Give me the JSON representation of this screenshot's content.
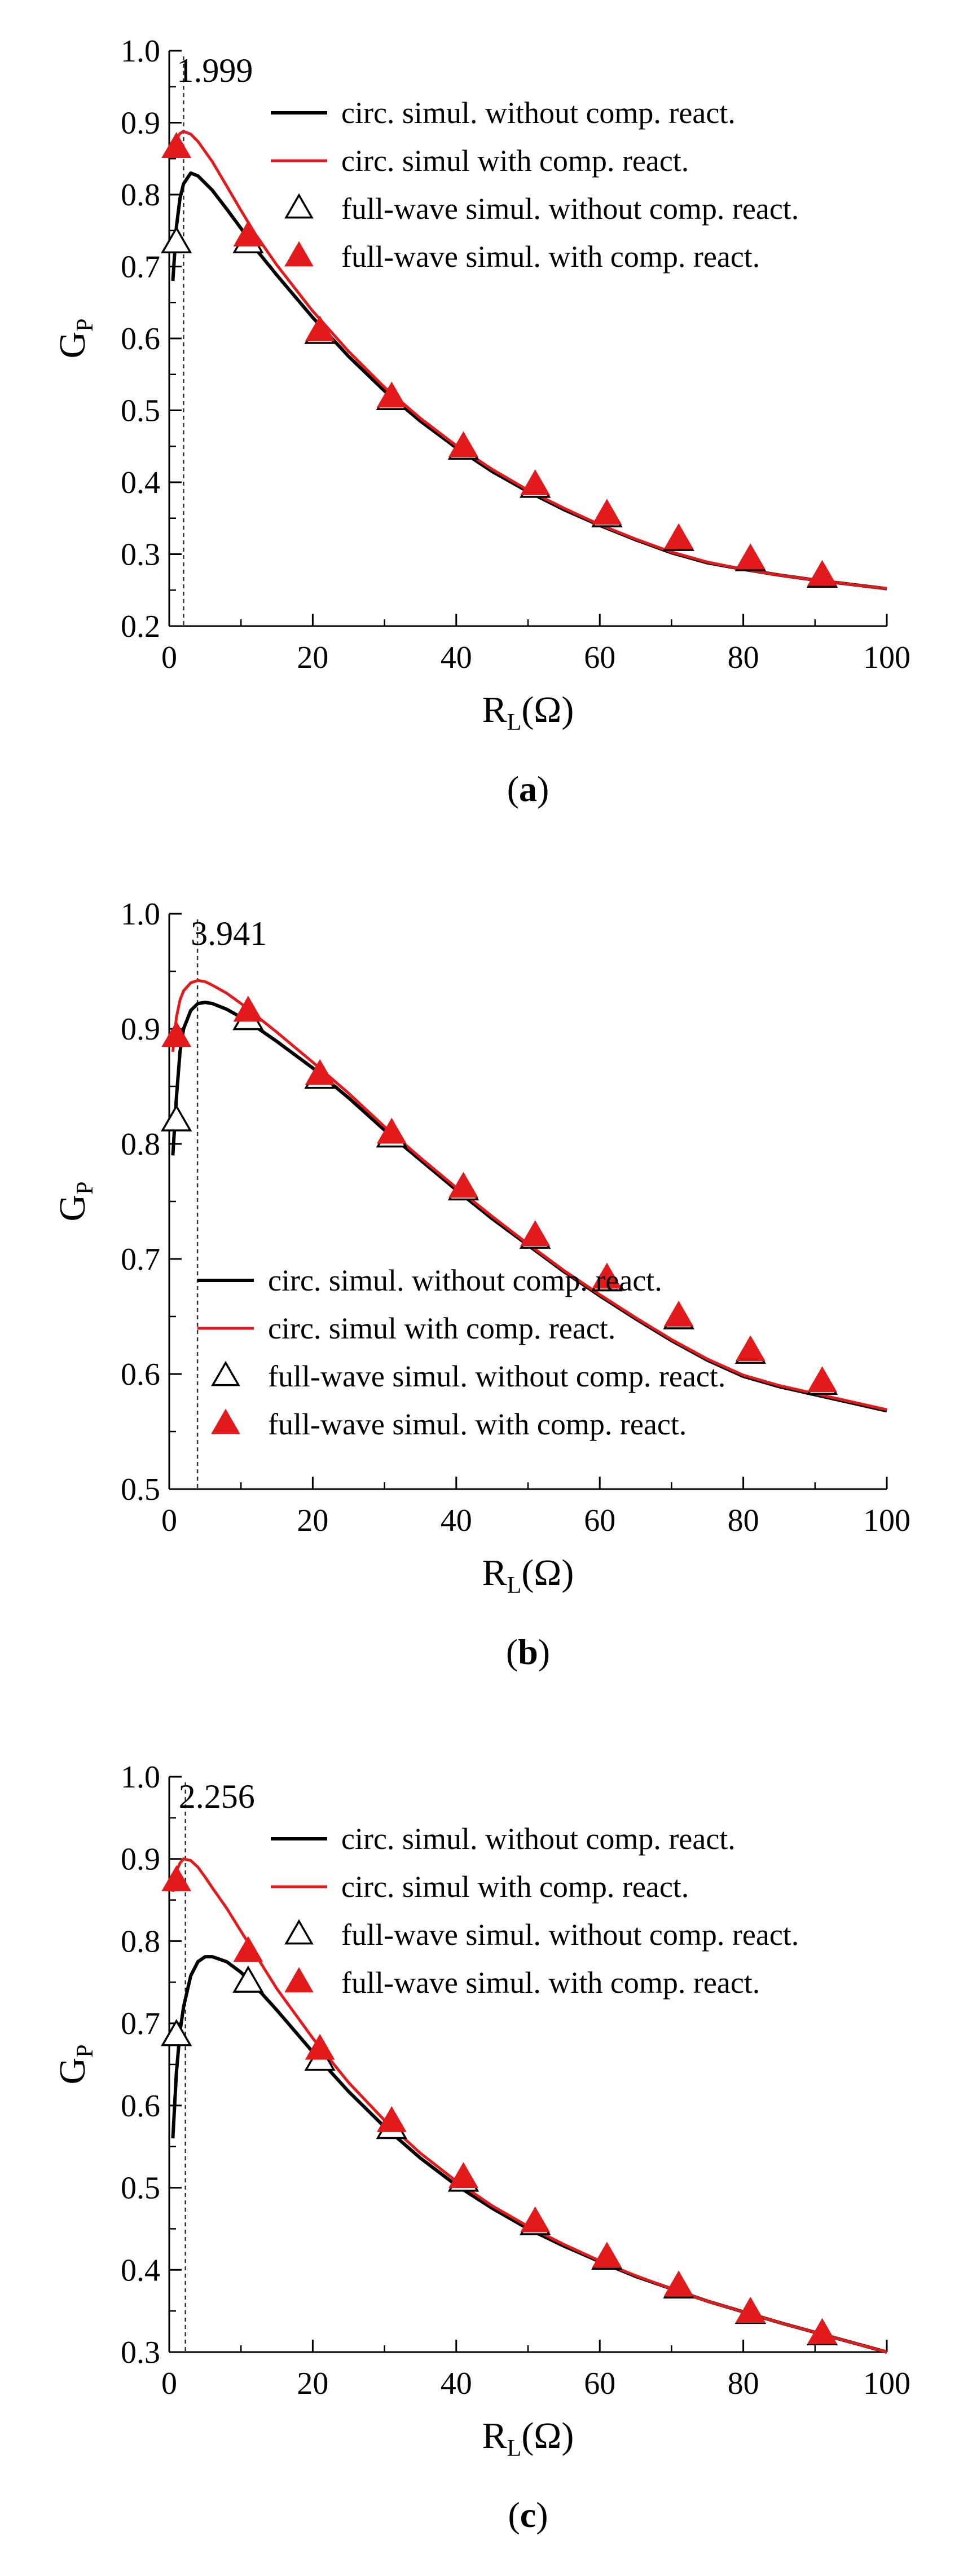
{
  "figure": {
    "panels": [
      {
        "caption_letter": "a",
        "chart_data": {
          "type": "line",
          "title": "",
          "xlabel": "R",
          "xlabel_sub": "L",
          "xlabel_suffix": "(Ω)",
          "ylabel": "G",
          "ylabel_sub": "P",
          "xlim": [
            0,
            100
          ],
          "ylim": [
            0.2,
            1.0
          ],
          "xticks": [
            0,
            20,
            40,
            60,
            80,
            100
          ],
          "yticks": [
            0.2,
            0.3,
            0.4,
            0.5,
            0.6,
            0.7,
            0.8,
            0.9,
            1.0
          ],
          "ytick_labels": [
            "0.2",
            "0.3",
            "0.4",
            "0.5",
            "0.6",
            "0.7",
            "0.8",
            "0.9",
            "1.0"
          ],
          "annotation": {
            "x": 1.999,
            "label": "1.999"
          },
          "legend_position": "top-right",
          "series": [
            {
              "name": "circ. simul. without comp. react.",
              "kind": "line",
              "color": "#000000",
              "x": [
                0.5,
                1,
                1.5,
                2,
                3,
                4,
                6,
                8,
                10,
                12,
                15,
                20,
                25,
                30,
                35,
                40,
                45,
                50,
                55,
                60,
                65,
                70,
                75,
                80,
                85,
                90,
                95,
                100
              ],
              "values": [
                0.68,
                0.755,
                0.795,
                0.815,
                0.83,
                0.826,
                0.806,
                0.78,
                0.753,
                0.725,
                0.688,
                0.629,
                0.575,
                0.527,
                0.485,
                0.448,
                0.415,
                0.387,
                0.362,
                0.34,
                0.32,
                0.302,
                0.288,
                0.279,
                0.271,
                0.264,
                0.258,
                0.252
              ]
            },
            {
              "name": "circ. simul with comp. react.",
              "kind": "line",
              "color": "#e31a1c",
              "x": [
                0.5,
                1,
                1.5,
                2,
                3,
                4,
                6,
                8,
                10,
                12,
                15,
                20,
                25,
                30,
                35,
                40,
                45,
                50,
                55,
                60,
                65,
                70,
                75,
                80,
                85,
                90,
                95,
                100
              ],
              "values": [
                0.855,
                0.877,
                0.885,
                0.888,
                0.884,
                0.874,
                0.846,
                0.812,
                0.778,
                0.745,
                0.702,
                0.638,
                0.582,
                0.532,
                0.489,
                0.451,
                0.418,
                0.389,
                0.364,
                0.341,
                0.321,
                0.303,
                0.289,
                0.279,
                0.271,
                0.264,
                0.258,
                0.252
              ]
            },
            {
              "name": "full-wave simul. without comp. react.",
              "kind": "markers-open",
              "color": "#000000",
              "x": [
                1,
                11,
                21,
                31,
                41,
                51,
                61,
                71,
                81,
                91
              ],
              "values": [
                0.733,
                0.733,
                0.607,
                0.515,
                0.446,
                0.393,
                0.352,
                0.319,
                0.291,
                0.268
              ]
            },
            {
              "name": "full-wave simul. with comp. react.",
              "kind": "markers-filled",
              "color": "#e31a1c",
              "x": [
                1,
                11,
                21,
                31,
                41,
                51,
                61,
                71,
                81,
                91
              ],
              "values": [
                0.865,
                0.742,
                0.61,
                0.518,
                0.449,
                0.396,
                0.355,
                0.321,
                0.293,
                0.27
              ]
            }
          ]
        }
      },
      {
        "caption_letter": "b",
        "chart_data": {
          "type": "line",
          "title": "",
          "xlabel": "R",
          "xlabel_sub": "L",
          "xlabel_suffix": "(Ω)",
          "ylabel": "G",
          "ylabel_sub": "P",
          "xlim": [
            0,
            100
          ],
          "ylim": [
            0.5,
            1.0
          ],
          "xticks": [
            0,
            20,
            40,
            60,
            80,
            100
          ],
          "yticks": [
            0.5,
            0.6,
            0.7,
            0.8,
            0.9,
            1.0
          ],
          "ytick_labels": [
            "0.5",
            "0.6",
            "0.7",
            "0.8",
            "0.9",
            "1.0"
          ],
          "annotation": {
            "x": 3.941,
            "label": "3.941"
          },
          "legend_position": "bottom-left",
          "series": [
            {
              "name": "circ. simul. without comp. react.",
              "kind": "line",
              "color": "#000000",
              "x": [
                0.5,
                1,
                1.5,
                2,
                3,
                4,
                5,
                6,
                8,
                10,
                12,
                15,
                20,
                25,
                30,
                35,
                40,
                45,
                50,
                55,
                60,
                65,
                70,
                75,
                80,
                85,
                90,
                95,
                100
              ],
              "values": [
                0.79,
                0.84,
                0.88,
                0.9,
                0.916,
                0.922,
                0.923,
                0.922,
                0.917,
                0.91,
                0.902,
                0.889,
                0.866,
                0.84,
                0.812,
                0.786,
                0.76,
                0.735,
                0.712,
                0.689,
                0.668,
                0.648,
                0.629,
                0.612,
                0.598,
                0.589,
                0.582,
                0.575,
                0.568
              ]
            },
            {
              "name": "circ. simul with comp. react.",
              "kind": "line",
              "color": "#e31a1c",
              "x": [
                0.5,
                1,
                1.5,
                2,
                3,
                4,
                5,
                6,
                8,
                10,
                12,
                15,
                20,
                25,
                30,
                35,
                40,
                45,
                50,
                55,
                60,
                65,
                70,
                75,
                80,
                85,
                90,
                95,
                100
              ],
              "values": [
                0.88,
                0.91,
                0.925,
                0.933,
                0.94,
                0.942,
                0.941,
                0.938,
                0.931,
                0.922,
                0.912,
                0.897,
                0.871,
                0.844,
                0.815,
                0.788,
                0.762,
                0.737,
                0.713,
                0.69,
                0.669,
                0.649,
                0.63,
                0.613,
                0.599,
                0.59,
                0.583,
                0.576,
                0.569
              ]
            },
            {
              "name": "full-wave simul. without comp. react.",
              "kind": "markers-open",
              "color": "#000000",
              "x": [
                1,
                11,
                21,
                31,
                41,
                51,
                61,
                71,
                81,
                91
              ],
              "values": [
                0.82,
                0.908,
                0.857,
                0.806,
                0.76,
                0.718,
                0.681,
                0.648,
                0.618,
                0.591
              ]
            },
            {
              "name": "full-wave simul. with comp. react.",
              "kind": "markers-filled",
              "color": "#e31a1c",
              "x": [
                1,
                11,
                21,
                31,
                41,
                51,
                61,
                71,
                81,
                91
              ],
              "values": [
                0.893,
                0.915,
                0.86,
                0.809,
                0.762,
                0.72,
                0.683,
                0.65,
                0.62,
                0.593
              ]
            }
          ]
        }
      },
      {
        "caption_letter": "c",
        "chart_data": {
          "type": "line",
          "title": "",
          "xlabel": "R",
          "xlabel_sub": "L",
          "xlabel_suffix": "(Ω)",
          "ylabel": "G",
          "ylabel_sub": "P",
          "xlim": [
            0,
            100
          ],
          "ylim": [
            0.3,
            1.0
          ],
          "xticks": [
            0,
            20,
            40,
            60,
            80,
            100
          ],
          "yticks": [
            0.3,
            0.4,
            0.5,
            0.6,
            0.7,
            0.8,
            0.9,
            1.0
          ],
          "ytick_labels": [
            "0.3",
            "0.4",
            "0.5",
            "0.6",
            "0.7",
            "0.8",
            "0.9",
            "1.0"
          ],
          "annotation": {
            "x": 2.256,
            "label": "2.256"
          },
          "legend_position": "top-right",
          "series": [
            {
              "name": "circ. simul. without comp. react.",
              "kind": "line",
              "color": "#000000",
              "x": [
                0.5,
                1,
                1.5,
                2,
                3,
                4,
                5,
                6,
                8,
                10,
                12,
                15,
                20,
                25,
                30,
                35,
                40,
                45,
                50,
                55,
                60,
                65,
                70,
                75,
                80,
                85,
                90,
                95,
                100
              ],
              "values": [
                0.56,
                0.64,
                0.69,
                0.72,
                0.758,
                0.775,
                0.781,
                0.781,
                0.775,
                0.762,
                0.745,
                0.716,
                0.665,
                0.617,
                0.574,
                0.536,
                0.503,
                0.475,
                0.45,
                0.429,
                0.41,
                0.392,
                0.377,
                0.362,
                0.349,
                0.336,
                0.324,
                0.312,
                0.3
              ]
            },
            {
              "name": "circ. simul with comp. react.",
              "kind": "line",
              "color": "#e31a1c",
              "x": [
                0.5,
                1,
                1.5,
                2,
                3,
                4,
                5,
                6,
                8,
                10,
                12,
                15,
                20,
                25,
                30,
                35,
                40,
                45,
                50,
                55,
                60,
                65,
                70,
                75,
                80,
                85,
                90,
                95,
                100
              ],
              "values": [
                0.86,
                0.885,
                0.895,
                0.9,
                0.898,
                0.89,
                0.878,
                0.865,
                0.84,
                0.812,
                0.784,
                0.742,
                0.682,
                0.628,
                0.582,
                0.542,
                0.508,
                0.478,
                0.453,
                0.431,
                0.411,
                0.393,
                0.377,
                0.362,
                0.349,
                0.336,
                0.324,
                0.312,
                0.3
              ]
            },
            {
              "name": "full-wave simul. without comp. react.",
              "kind": "markers-open",
              "color": "#000000",
              "x": [
                1,
                11,
                21,
                31,
                41,
                51,
                61,
                71,
                81,
                91
              ],
              "values": [
                0.685,
                0.75,
                0.655,
                0.572,
                0.508,
                0.455,
                0.413,
                0.378,
                0.347,
                0.321
              ]
            },
            {
              "name": "full-wave simul. with comp. react.",
              "kind": "markers-filled",
              "color": "#e31a1c",
              "x": [
                1,
                11,
                21,
                31,
                41,
                51,
                61,
                71,
                81,
                91
              ],
              "values": [
                0.873,
                0.787,
                0.668,
                0.58,
                0.512,
                0.458,
                0.415,
                0.38,
                0.348,
                0.322
              ]
            }
          ]
        }
      }
    ]
  },
  "chart_data": [
    {
      "ref": "panel a"
    },
    {
      "ref": "panel b"
    },
    {
      "ref": "panel c"
    }
  ]
}
